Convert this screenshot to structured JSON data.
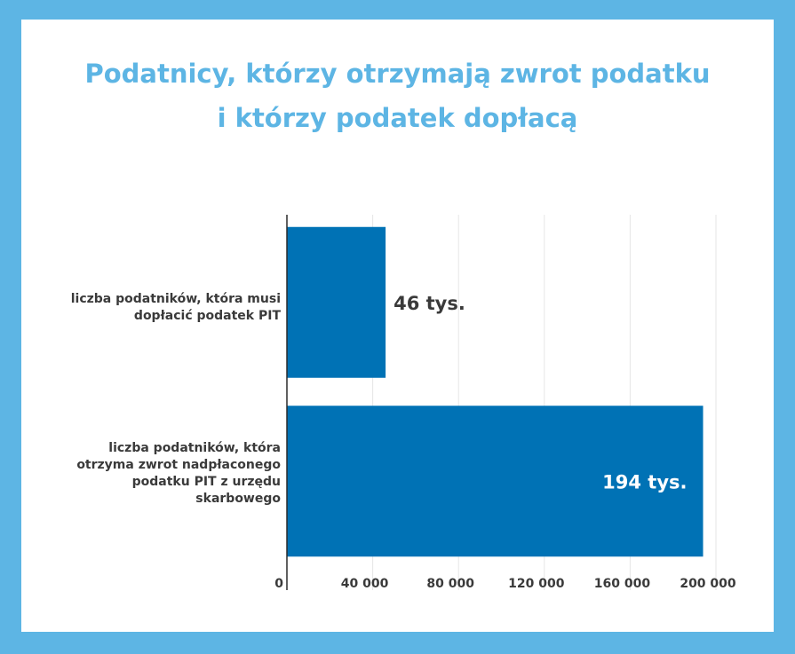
{
  "title_lines": [
    "Podatnicy, którzy otrzymają zwrot podatku",
    "i którzy podatek dopłacą"
  ],
  "chart_data": {
    "type": "bar",
    "orientation": "horizontal",
    "categories": [
      "liczba podatników, która musi dopłacić podatek PIT",
      "liczba podatników, która otrzyma zwrot nadpłaconego podatku PIT z urzędu skarbowego"
    ],
    "values": [
      46000,
      194000
    ],
    "data_labels": [
      "46 tys.",
      "194 tys."
    ],
    "xlim": [
      0,
      200000
    ],
    "xticks": [
      0,
      40000,
      80000,
      120000,
      160000,
      200000
    ],
    "xtick_labels": [
      "0",
      "40 000",
      "80 000",
      "120 000",
      "160 000",
      "200 000"
    ],
    "grid": true,
    "legend": "none",
    "colors": {
      "bar": "#0072b5",
      "title": "#5db5e4",
      "frame": "#5db5e4",
      "label_outside": "#3a3a3a",
      "label_inside": "#ffffff"
    }
  }
}
